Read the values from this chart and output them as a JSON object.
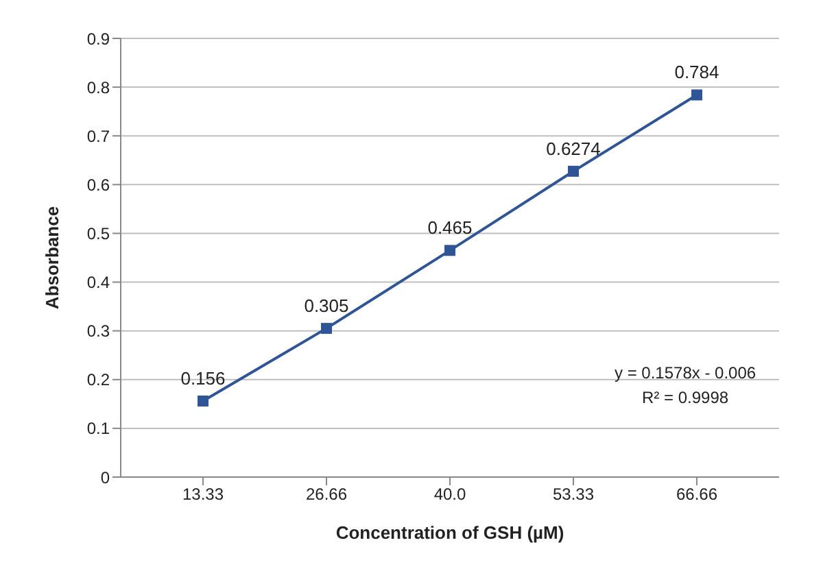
{
  "chart_data": {
    "type": "line",
    "xlabel": "Concentration of GSH (µM)",
    "ylabel": "Absorbance",
    "categories": [
      "13.33",
      "26.66",
      "40.0",
      "53.33",
      "66.66"
    ],
    "series": [
      {
        "color": "#2f5597",
        "values": [
          0.156,
          0.305,
          0.465,
          0.6274,
          0.784
        ]
      }
    ],
    "ylim": [
      0,
      0.9
    ],
    "yticks": [
      0,
      0.1,
      0.2,
      0.3,
      0.4,
      0.5,
      0.6,
      0.7,
      0.8,
      0.9
    ],
    "grid": "y",
    "marker": "square",
    "line_style": "solid",
    "data_labels": true,
    "legend": false,
    "annotations": [
      "y = 0.1578x - 0.006",
      "R² = 0.9998"
    ]
  }
}
